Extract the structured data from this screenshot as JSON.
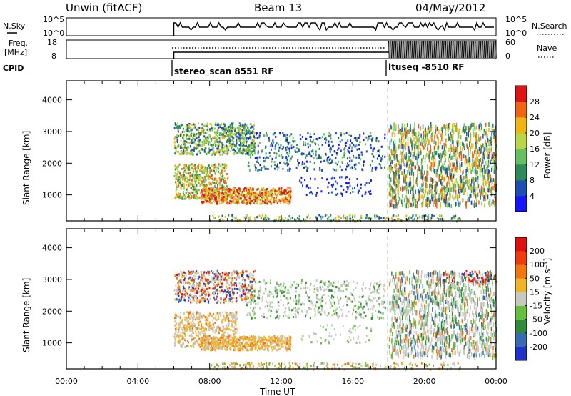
{
  "header": {
    "station": "Unwin (fitACF)",
    "beam": "Beam 13",
    "date": "04/May/2012"
  },
  "status_panels": {
    "nsky_label": "N.Sky",
    "nsky_ticks": [
      "10^5",
      "10^0"
    ],
    "nsearch_label": "N.Search",
    "nsearch_ticks": [
      "10^5",
      "10^0"
    ],
    "freq_label_line1": "Freq.",
    "freq_label_line2": "[MHz]",
    "freq_ticks": [
      "18",
      "8"
    ],
    "nave_label": "Nave",
    "nave_ticks": [
      "60",
      "0"
    ],
    "cpid_label": "CPID",
    "cpid_segments": [
      {
        "start_hour": 6.0,
        "label": "stereo_scan 8551 RF"
      },
      {
        "start_hour": 18.0,
        "label": "ltuseq -8510 RF"
      }
    ]
  },
  "chart_data": [
    {
      "type": "heatmap",
      "parameter": "Power",
      "ylabel": "Slant Range [km]",
      "xlabel": "Time UT",
      "x_ticks": [
        "00:00",
        "04:00",
        "08:00",
        "12:00",
        "16:00",
        "20:00",
        "00:00"
      ],
      "y_ticks": [
        1000,
        2000,
        3000,
        4000
      ],
      "xlim_hours": [
        0,
        24
      ],
      "ylim_km": [
        180,
        4600
      ],
      "colorbar_label": "Power [dB]",
      "colorbar_ticks": [
        "4",
        "8",
        "12",
        "16",
        "20",
        "24",
        "28"
      ],
      "colorbar_colors": [
        "#1414ff",
        "#1c4fb4",
        "#2f8a5a",
        "#66c060",
        "#b8d648",
        "#f0b414",
        "#f06414",
        "#e01414"
      ],
      "data_window_hours": [
        6.0,
        24.0
      ]
    },
    {
      "type": "heatmap",
      "parameter": "Velocity",
      "ylabel": "Slant Range [km]",
      "xlabel": "Time UT",
      "x_ticks": [
        "00:00",
        "04:00",
        "08:00",
        "12:00",
        "16:00",
        "20:00",
        "00:00"
      ],
      "y_ticks": [
        1000,
        2000,
        3000,
        4000
      ],
      "xlim_hours": [
        0,
        24
      ],
      "ylim_km": [
        180,
        4600
      ],
      "colorbar_label": "Velocity [m s⁻¹]",
      "colorbar_ticks": [
        "200",
        "100",
        "50",
        "15",
        "-15",
        "-50",
        "-100",
        "-200"
      ],
      "colorbar_colors": [
        "#1c32c8",
        "#3a6ab4",
        "#2f8a3a",
        "#66c040",
        "#c8c8c0",
        "#f0b428",
        "#f07814",
        "#f03c0c",
        "#e01010"
      ],
      "data_window_hours": [
        6.0,
        24.0
      ]
    }
  ],
  "footer": {
    "time_label": "Time UT"
  }
}
